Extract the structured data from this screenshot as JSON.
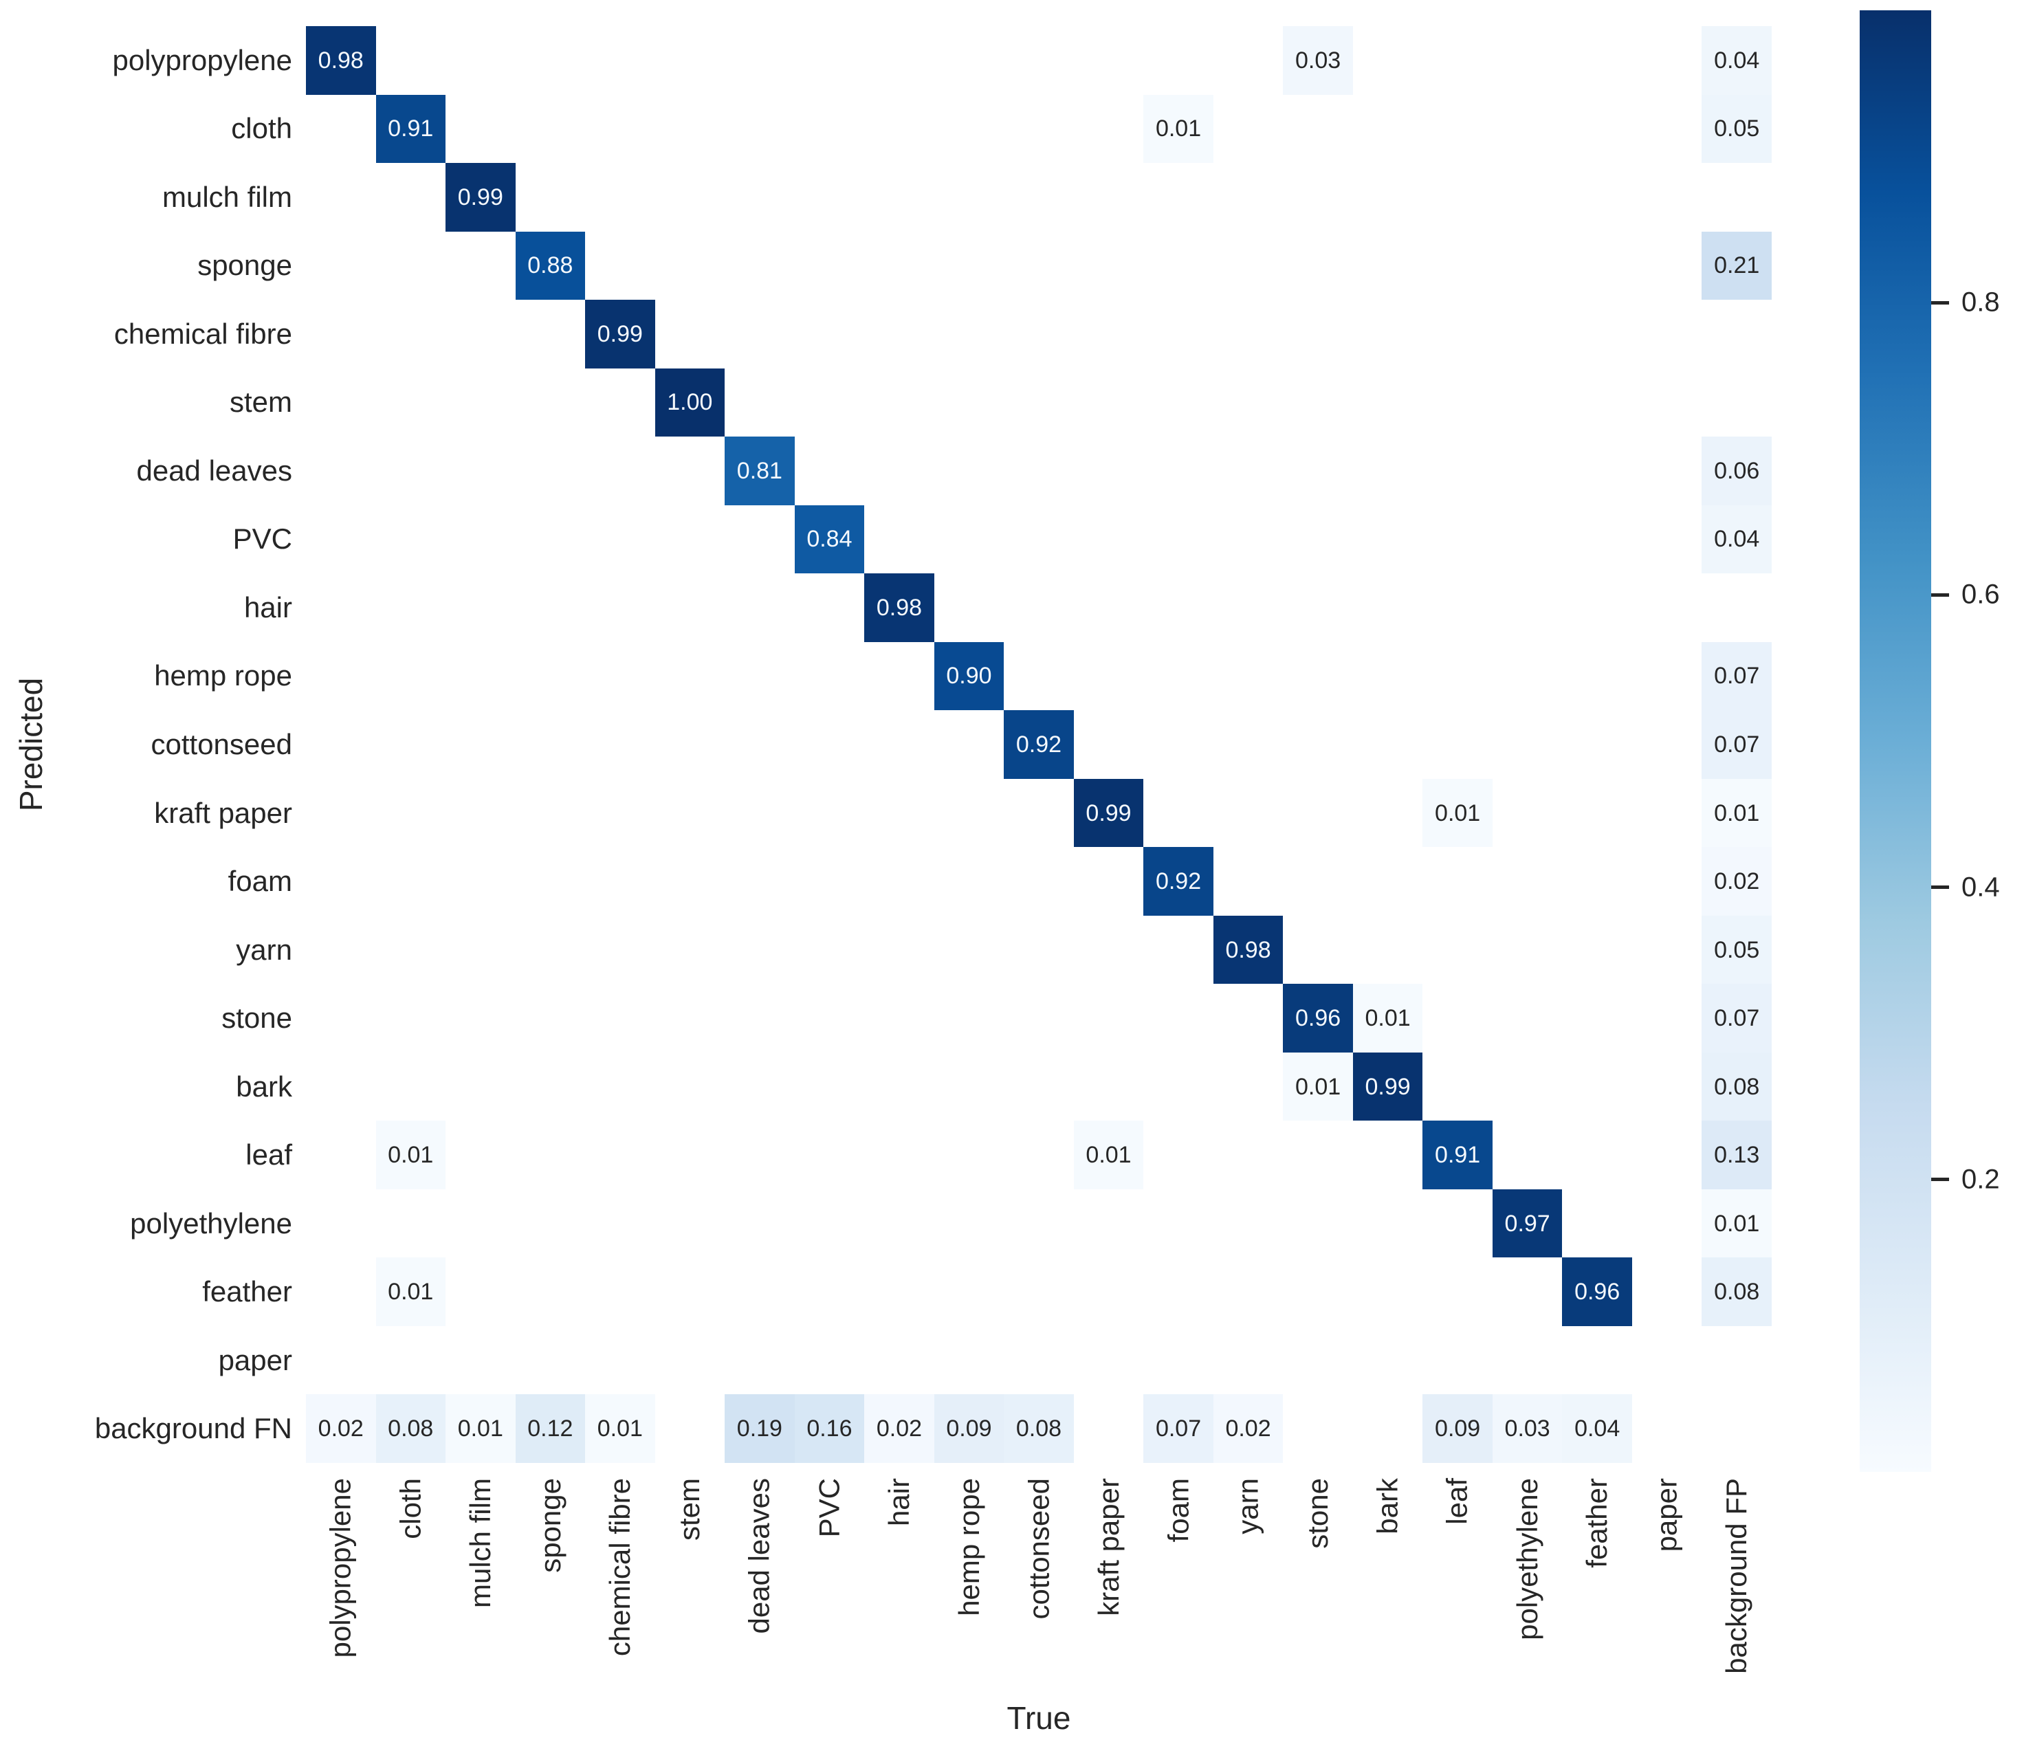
{
  "chart_data": {
    "type": "heatmap",
    "title": "",
    "xlabel": "True",
    "ylabel": "Predicted",
    "x_categories": [
      "polypropylene",
      "cloth",
      "mulch film",
      "sponge",
      "chemical fibre",
      "stem",
      "dead leaves",
      "PVC",
      "hair",
      "hemp rope",
      "cottonseed",
      "kraft paper",
      "foam",
      "yarn",
      "stone",
      "bark",
      "leaf",
      "polyethylene",
      "feather",
      "paper",
      "background FP"
    ],
    "y_categories": [
      "polypropylene",
      "cloth",
      "mulch film",
      "sponge",
      "chemical fibre",
      "stem",
      "dead leaves",
      "PVC",
      "hair",
      "hemp rope",
      "cottonseed",
      "kraft paper",
      "foam",
      "yarn",
      "stone",
      "bark",
      "leaf",
      "polyethylene",
      "feather",
      "paper",
      "background FN"
    ],
    "matrix": [
      [
        0.98,
        null,
        null,
        null,
        null,
        null,
        null,
        null,
        null,
        null,
        null,
        null,
        null,
        null,
        0.03,
        null,
        null,
        null,
        null,
        null,
        0.04
      ],
      [
        null,
        0.91,
        null,
        null,
        null,
        null,
        null,
        null,
        null,
        null,
        null,
        null,
        0.01,
        null,
        null,
        null,
        null,
        null,
        null,
        null,
        0.05
      ],
      [
        null,
        null,
        0.99,
        null,
        null,
        null,
        null,
        null,
        null,
        null,
        null,
        null,
        null,
        null,
        null,
        null,
        null,
        null,
        null,
        null,
        null
      ],
      [
        null,
        null,
        null,
        0.88,
        null,
        null,
        null,
        null,
        null,
        null,
        null,
        null,
        null,
        null,
        null,
        null,
        null,
        null,
        null,
        null,
        0.21
      ],
      [
        null,
        null,
        null,
        null,
        0.99,
        null,
        null,
        null,
        null,
        null,
        null,
        null,
        null,
        null,
        null,
        null,
        null,
        null,
        null,
        null,
        null
      ],
      [
        null,
        null,
        null,
        null,
        null,
        1.0,
        null,
        null,
        null,
        null,
        null,
        null,
        null,
        null,
        null,
        null,
        null,
        null,
        null,
        null,
        null
      ],
      [
        null,
        null,
        null,
        null,
        null,
        null,
        0.81,
        null,
        null,
        null,
        null,
        null,
        null,
        null,
        null,
        null,
        null,
        null,
        null,
        null,
        0.06
      ],
      [
        null,
        null,
        null,
        null,
        null,
        null,
        null,
        0.84,
        null,
        null,
        null,
        null,
        null,
        null,
        null,
        null,
        null,
        null,
        null,
        null,
        0.04
      ],
      [
        null,
        null,
        null,
        null,
        null,
        null,
        null,
        null,
        0.98,
        null,
        null,
        null,
        null,
        null,
        null,
        null,
        null,
        null,
        null,
        null,
        null
      ],
      [
        null,
        null,
        null,
        null,
        null,
        null,
        null,
        null,
        null,
        0.9,
        null,
        null,
        null,
        null,
        null,
        null,
        null,
        null,
        null,
        null,
        0.07
      ],
      [
        null,
        null,
        null,
        null,
        null,
        null,
        null,
        null,
        null,
        null,
        0.92,
        null,
        null,
        null,
        null,
        null,
        null,
        null,
        null,
        null,
        0.07
      ],
      [
        null,
        null,
        null,
        null,
        null,
        null,
        null,
        null,
        null,
        null,
        null,
        0.99,
        null,
        null,
        null,
        null,
        0.01,
        null,
        null,
        null,
        0.01
      ],
      [
        null,
        null,
        null,
        null,
        null,
        null,
        null,
        null,
        null,
        null,
        null,
        null,
        0.92,
        null,
        null,
        null,
        null,
        null,
        null,
        null,
        0.02
      ],
      [
        null,
        null,
        null,
        null,
        null,
        null,
        null,
        null,
        null,
        null,
        null,
        null,
        null,
        0.98,
        null,
        null,
        null,
        null,
        null,
        null,
        0.05
      ],
      [
        null,
        null,
        null,
        null,
        null,
        null,
        null,
        null,
        null,
        null,
        null,
        null,
        null,
        null,
        0.96,
        0.01,
        null,
        null,
        null,
        null,
        0.07
      ],
      [
        null,
        null,
        null,
        null,
        null,
        null,
        null,
        null,
        null,
        null,
        null,
        null,
        null,
        null,
        0.01,
        0.99,
        null,
        null,
        null,
        null,
        0.08
      ],
      [
        null,
        0.01,
        null,
        null,
        null,
        null,
        null,
        null,
        null,
        null,
        null,
        0.01,
        null,
        null,
        null,
        null,
        0.91,
        null,
        null,
        null,
        0.13
      ],
      [
        null,
        null,
        null,
        null,
        null,
        null,
        null,
        null,
        null,
        null,
        null,
        null,
        null,
        null,
        null,
        null,
        null,
        0.97,
        null,
        null,
        0.01
      ],
      [
        null,
        0.01,
        null,
        null,
        null,
        null,
        null,
        null,
        null,
        null,
        null,
        null,
        null,
        null,
        null,
        null,
        null,
        null,
        0.96,
        null,
        0.08
      ],
      [
        null,
        null,
        null,
        null,
        null,
        null,
        null,
        null,
        null,
        null,
        null,
        null,
        null,
        null,
        null,
        null,
        null,
        null,
        null,
        null,
        null
      ],
      [
        0.02,
        0.08,
        0.01,
        0.12,
        0.01,
        null,
        0.19,
        0.16,
        0.02,
        0.09,
        0.08,
        null,
        0.07,
        0.02,
        null,
        null,
        0.09,
        0.03,
        0.04,
        null,
        null
      ]
    ],
    "value_decimals": 2,
    "colormap": {
      "name": "Blues",
      "stops": [
        {
          "v": 0.0,
          "c": "#f7fbff"
        },
        {
          "v": 0.125,
          "c": "#deebf7"
        },
        {
          "v": 0.25,
          "c": "#c6dbef"
        },
        {
          "v": 0.375,
          "c": "#9ecae1"
        },
        {
          "v": 0.5,
          "c": "#6baed6"
        },
        {
          "v": 0.625,
          "c": "#4292c6"
        },
        {
          "v": 0.75,
          "c": "#2171b5"
        },
        {
          "v": 0.875,
          "c": "#08519c"
        },
        {
          "v": 1.0,
          "c": "#08306b"
        }
      ]
    },
    "colorbar": {
      "range": [
        0,
        1
      ],
      "ticks": [
        0.8,
        0.6,
        0.4,
        0.2
      ],
      "position": "right"
    },
    "empty_cell_color": "#ffffff",
    "annotation_text_dark": "#262626",
    "annotation_text_light": "#f5f9fd",
    "annotation_light_threshold": 0.5,
    "grid_on": false
  }
}
